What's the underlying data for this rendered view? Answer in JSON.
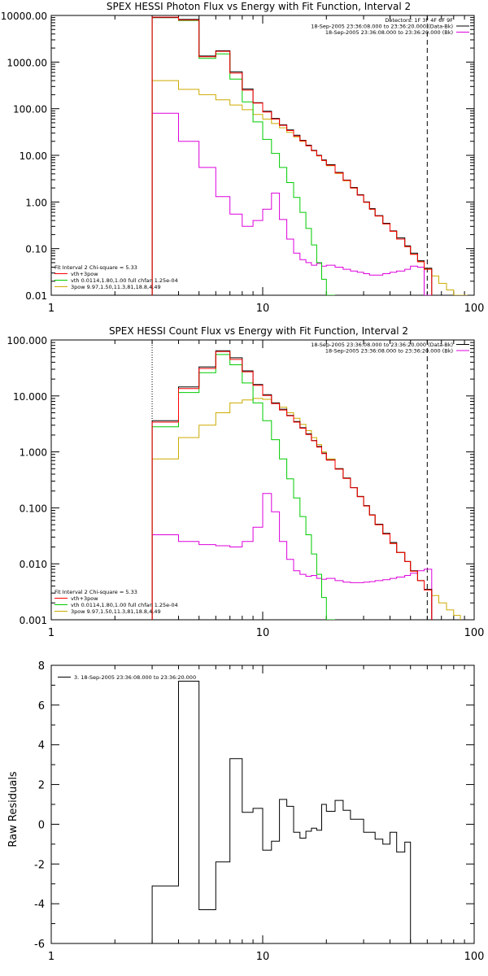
{
  "colors": {
    "black": "#000000",
    "red": "#ff0000",
    "green": "#00cc00",
    "yellow": "#ccaa00",
    "magenta": "#dd00dd"
  },
  "chart_data": [
    {
      "type": "line",
      "title": "SPEX HESSI Photon Flux vs Energy with Fit Function, Interval 2",
      "xscale": "log",
      "yscale": "log",
      "xlim": [
        1,
        100
      ],
      "ylim": [
        0.01,
        10000
      ],
      "xticklabels": [
        "1",
        "10",
        "100"
      ],
      "yticklabels": [
        "0.01",
        "0.10",
        "1.00",
        "10.00",
        "100.00",
        "1000.00",
        "10000.00"
      ],
      "legend_top": [
        "Detectors: 1F 3F 4F 6F 9F",
        "18-Sep-2005 23:36:08.000 to 23:36:20.000 (Data-Bk)",
        "18-Sep-2005 23:36:08.000 to 23:36:20.000 (Bk)"
      ],
      "legend_bottom": [
        "Fit Interval 2   Chi-square = 5.33",
        "vth+3pow",
        "vth 0.0114,1.80,1.00  full chfan 1.25e-04",
        "3pow 9.97,1.50,11.3,81,18.8,4.49"
      ],
      "vlines": [
        {
          "x": 3,
          "style": "dotted"
        },
        {
          "x": 60,
          "style": "dashed"
        }
      ],
      "energy_edges": [
        3,
        4,
        5,
        6,
        7,
        8,
        9,
        10,
        11,
        12,
        13,
        14,
        15,
        16,
        17,
        18,
        19,
        20,
        22,
        24,
        26,
        28,
        30,
        32,
        34,
        37,
        40,
        43,
        47,
        50,
        54,
        58,
        63,
        68,
        74,
        80,
        86,
        93
      ],
      "series": [
        {
          "name": "data-bk",
          "color": "black",
          "values": [
            9000,
            8200,
            1350,
            1750,
            620,
            265,
            135,
            88,
            62,
            45,
            35,
            27,
            21,
            16.5,
            12.8,
            10,
            8,
            6.3,
            4.3,
            2.95,
            2.05,
            1.43,
            1.0,
            0.72,
            0.51,
            0.35,
            0.24,
            0.17,
            0.115,
            0.08,
            0.055,
            0.038,
            null,
            null,
            null,
            null,
            null
          ]
        },
        {
          "name": "vth+3pow",
          "color": "red",
          "values": [
            9200,
            8000,
            1300,
            1700,
            580,
            250,
            132,
            85,
            60,
            44,
            34,
            26,
            20.5,
            16,
            12.5,
            9.8,
            7.8,
            6.1,
            4.2,
            2.9,
            2.0,
            1.4,
            0.98,
            0.7,
            0.5,
            0.34,
            0.235,
            0.16,
            0.11,
            0.075,
            0.052,
            0.036,
            null,
            null,
            null,
            null,
            null
          ]
        },
        {
          "name": "vth",
          "color": "green",
          "values": [
            9000,
            7800,
            1200,
            1500,
            430,
            140,
            52,
            22,
            11,
            5.5,
            2.6,
            1.25,
            0.6,
            0.27,
            0.12,
            0.05,
            0.022,
            0.0095,
            null,
            null,
            null,
            null,
            null,
            null,
            null,
            null,
            null,
            null,
            null,
            null,
            null,
            null,
            null,
            null,
            null,
            null,
            null
          ]
        },
        {
          "name": "3pow",
          "color": "yellow",
          "values": [
            400,
            260,
            200,
            155,
            120,
            95,
            75,
            60,
            48,
            39,
            31,
            25,
            20,
            16,
            12.5,
            9.7,
            7.7,
            6.0,
            4.1,
            2.85,
            1.98,
            1.4,
            0.98,
            0.7,
            0.5,
            0.34,
            0.235,
            0.16,
            0.11,
            0.076,
            0.053,
            0.037,
            0.026,
            0.018,
            0.013,
            0.01,
            0.008
          ]
        },
        {
          "name": "bk",
          "color": "magenta",
          "values": [
            80,
            20,
            5.5,
            1.3,
            0.55,
            0.3,
            0.4,
            0.7,
            1.55,
            0.42,
            0.16,
            0.08,
            0.058,
            0.05,
            0.044,
            0.048,
            0.042,
            0.044,
            0.04,
            0.036,
            0.033,
            0.031,
            0.029,
            0.027,
            0.027,
            0.029,
            0.031,
            0.033,
            0.036,
            0.042,
            0.04,
            0.008,
            null,
            null,
            null,
            null,
            null
          ]
        }
      ]
    },
    {
      "type": "line",
      "title": "SPEX HESSI Count Flux vs Energy with Fit Function, Interval 2",
      "xscale": "log",
      "yscale": "log",
      "xlim": [
        1,
        100
      ],
      "ylim": [
        0.001,
        100
      ],
      "xticklabels": [
        "1",
        "10",
        "100"
      ],
      "yticklabels": [
        "0.001",
        "0.010",
        "0.100",
        "1.000",
        "10.000",
        "100.000"
      ],
      "legend_top": [
        "18-Sep-2005 23:36:08.000 to 23:36:20.000 (Data-Bk)",
        "18-Sep-2005 23:36:08.000 to 23:36:20.000 (Bk)"
      ],
      "legend_bottom": [
        "Fit Interval 2   Chi-square = 5.33",
        "vth+3pow",
        "vth 0.0114,1.80,1.00  full chfan 1.25e-04",
        "3pow 9.97,1.50,11.3,81,18.8,4.49"
      ],
      "vlines": [
        {
          "x": 3,
          "style": "dotted"
        },
        {
          "x": 60,
          "style": "dashed"
        }
      ],
      "energy_edges": [
        3,
        4,
        5,
        6,
        7,
        8,
        9,
        10,
        11,
        12,
        13,
        14,
        15,
        16,
        17,
        18,
        19,
        20,
        22,
        24,
        26,
        28,
        30,
        32,
        34,
        37,
        40,
        43,
        47,
        50,
        54,
        58,
        63,
        68,
        74,
        80,
        86,
        93
      ],
      "series": [
        {
          "name": "data-bk",
          "color": "black",
          "values": [
            3.6,
            14.5,
            33,
            64,
            48,
            28,
            16,
            10.5,
            7.5,
            5.8,
            4.5,
            3.5,
            2.7,
            2.1,
            1.6,
            1.25,
            0.95,
            0.72,
            0.5,
            0.34,
            0.23,
            0.16,
            0.11,
            0.075,
            0.051,
            0.035,
            0.024,
            0.016,
            0.011,
            0.0075,
            0.005,
            0.0035,
            null,
            null,
            null,
            null,
            null
          ]
        },
        {
          "name": "vth+3pow",
          "color": "red",
          "values": [
            3.4,
            13.5,
            31,
            62,
            45,
            27,
            15.5,
            10.2,
            7.3,
            5.6,
            4.4,
            3.4,
            2.65,
            2.05,
            1.58,
            1.22,
            0.93,
            0.71,
            0.49,
            0.335,
            0.228,
            0.158,
            0.108,
            0.074,
            0.05,
            0.034,
            0.023,
            0.016,
            0.011,
            0.0074,
            0.005,
            0.0034,
            null,
            null,
            null,
            null,
            null
          ]
        },
        {
          "name": "vth",
          "color": "green",
          "values": [
            2.8,
            11.5,
            26,
            55,
            36,
            17,
            7.5,
            3.6,
            1.65,
            0.75,
            0.33,
            0.15,
            0.07,
            0.033,
            0.015,
            0.0065,
            0.0025,
            0.001,
            null,
            null,
            null,
            null,
            null,
            null,
            null,
            null,
            null,
            null,
            null,
            null,
            null,
            null,
            null,
            null,
            null,
            null,
            null
          ]
        },
        {
          "name": "3pow",
          "color": "yellow",
          "values": [
            0.75,
            1.8,
            3.0,
            5.0,
            7.5,
            8.5,
            9.0,
            8.7,
            7.5,
            6.3,
            5.0,
            4.0,
            3.1,
            2.4,
            1.8,
            1.35,
            1.0,
            0.75,
            0.5,
            0.34,
            0.23,
            0.16,
            0.108,
            0.074,
            0.05,
            0.034,
            0.023,
            0.016,
            0.011,
            0.0074,
            0.005,
            0.0035,
            0.0027,
            0.002,
            0.0015,
            0.0012,
            null
          ]
        },
        {
          "name": "bk",
          "color": "magenta",
          "values": [
            0.033,
            0.025,
            0.022,
            0.021,
            0.02,
            0.025,
            0.045,
            0.18,
            0.085,
            0.025,
            0.012,
            0.0075,
            0.0065,
            0.006,
            0.0062,
            0.0055,
            0.0053,
            0.0055,
            0.005,
            0.0047,
            0.0046,
            0.0046,
            0.0047,
            0.0048,
            0.005,
            0.0052,
            0.0055,
            0.0058,
            0.0062,
            0.0068,
            0.0075,
            0.008,
            null,
            null,
            null,
            null,
            null
          ]
        }
      ]
    },
    {
      "type": "line",
      "title": "",
      "xscale": "log",
      "yscale": "linear",
      "xlim": [
        1,
        100
      ],
      "ylim": [
        -6,
        8
      ],
      "xticklabels": [
        "1",
        "10",
        "100"
      ],
      "yticklabels": [
        "-6",
        "-4",
        "-2",
        "0",
        "2",
        "4",
        "6",
        "8"
      ],
      "ylabel": "Raw Residuals",
      "legend": [
        "3. 18-Sep-2005 23:36:08.000 to 23:36:20.000"
      ],
      "energy_edges": [
        3,
        4,
        5,
        6,
        7,
        8,
        9,
        10,
        11,
        12,
        13,
        14,
        15,
        16,
        17,
        18,
        19,
        20,
        22,
        24,
        26,
        28,
        30,
        32,
        34,
        37,
        40,
        43,
        47,
        50,
        54,
        58,
        63,
        68,
        74,
        80,
        86,
        93
      ],
      "series": [
        {
          "name": "3. 18-Sep-2005 23:36:08.000 to 23:36:20.000",
          "color": "black",
          "values": [
            -3.1,
            7.2,
            -4.3,
            -1.9,
            3.3,
            0.6,
            0.8,
            -1.3,
            -0.85,
            1.25,
            0.9,
            -0.4,
            -0.7,
            -0.35,
            -0.2,
            -0.3,
            1.0,
            0.65,
            1.2,
            0.7,
            0.25,
            0.25,
            -0.4,
            -0.4,
            -0.75,
            -1.0,
            -0.4,
            -1.4,
            -0.9,
            null,
            null,
            null,
            null,
            null,
            null,
            null,
            null
          ]
        }
      ]
    }
  ]
}
